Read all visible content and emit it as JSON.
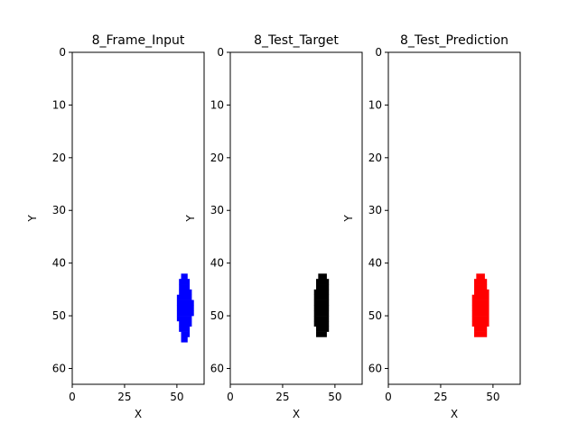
{
  "chart_data": [
    {
      "type": "heatmap",
      "title": "8_Frame_Input",
      "xlabel": "X",
      "ylabel": "Y",
      "xlim": [
        0,
        63
      ],
      "ylim": [
        63,
        0
      ],
      "xticks": [
        0,
        25,
        50
      ],
      "yticks": [
        0,
        10,
        20,
        30,
        40,
        50,
        60
      ],
      "color": "#0000ff",
      "pixels": [
        {
          "y": 42,
          "x0": 52,
          "x1": 54
        },
        {
          "y": 43,
          "x0": 51,
          "x1": 55
        },
        {
          "y": 44,
          "x0": 51,
          "x1": 55
        },
        {
          "y": 45,
          "x0": 51,
          "x1": 56
        },
        {
          "y": 46,
          "x0": 50,
          "x1": 56
        },
        {
          "y": 47,
          "x0": 50,
          "x1": 57
        },
        {
          "y": 48,
          "x0": 50,
          "x1": 57
        },
        {
          "y": 49,
          "x0": 50,
          "x1": 57
        },
        {
          "y": 50,
          "x0": 50,
          "x1": 56
        },
        {
          "y": 51,
          "x0": 51,
          "x1": 56
        },
        {
          "y": 52,
          "x0": 51,
          "x1": 55
        },
        {
          "y": 53,
          "x0": 52,
          "x1": 55
        },
        {
          "y": 54,
          "x0": 52,
          "x1": 54
        }
      ]
    },
    {
      "type": "heatmap",
      "title": "8_Test_Target",
      "xlabel": "X",
      "ylabel": "Y",
      "xlim": [
        0,
        63
      ],
      "ylim": [
        63,
        0
      ],
      "xticks": [
        0,
        25,
        50
      ],
      "yticks": [
        0,
        10,
        20,
        30,
        40,
        50,
        60
      ],
      "color": "#000000",
      "pixels": [
        {
          "y": 42,
          "x0": 42,
          "x1": 45
        },
        {
          "y": 43,
          "x0": 41,
          "x1": 46
        },
        {
          "y": 44,
          "x0": 41,
          "x1": 46
        },
        {
          "y": 45,
          "x0": 40,
          "x1": 46
        },
        {
          "y": 46,
          "x0": 40,
          "x1": 46
        },
        {
          "y": 47,
          "x0": 40,
          "x1": 46
        },
        {
          "y": 48,
          "x0": 40,
          "x1": 46
        },
        {
          "y": 49,
          "x0": 40,
          "x1": 46
        },
        {
          "y": 50,
          "x0": 40,
          "x1": 46
        },
        {
          "y": 51,
          "x0": 40,
          "x1": 46
        },
        {
          "y": 52,
          "x0": 41,
          "x1": 46
        },
        {
          "y": 53,
          "x0": 41,
          "x1": 45
        }
      ]
    },
    {
      "type": "heatmap",
      "title": "8_Test_Prediction",
      "xlabel": "X",
      "ylabel": "Y",
      "xlim": [
        0,
        63
      ],
      "ylim": [
        63,
        0
      ],
      "xticks": [
        0,
        25,
        50
      ],
      "yticks": [
        0,
        10,
        20,
        30,
        40,
        50,
        60
      ],
      "color": "#ff0000",
      "pixels": [
        {
          "y": 42,
          "x0": 42,
          "x1": 45
        },
        {
          "y": 43,
          "x0": 41,
          "x1": 46
        },
        {
          "y": 44,
          "x0": 41,
          "x1": 46
        },
        {
          "y": 45,
          "x0": 41,
          "x1": 47
        },
        {
          "y": 46,
          "x0": 40,
          "x1": 47
        },
        {
          "y": 47,
          "x0": 40,
          "x1": 47
        },
        {
          "y": 48,
          "x0": 40,
          "x1": 47
        },
        {
          "y": 49,
          "x0": 40,
          "x1": 47
        },
        {
          "y": 50,
          "x0": 40,
          "x1": 47
        },
        {
          "y": 51,
          "x0": 40,
          "x1": 47
        },
        {
          "y": 52,
          "x0": 41,
          "x1": 46
        },
        {
          "y": 53,
          "x0": 41,
          "x1": 46
        }
      ]
    }
  ]
}
